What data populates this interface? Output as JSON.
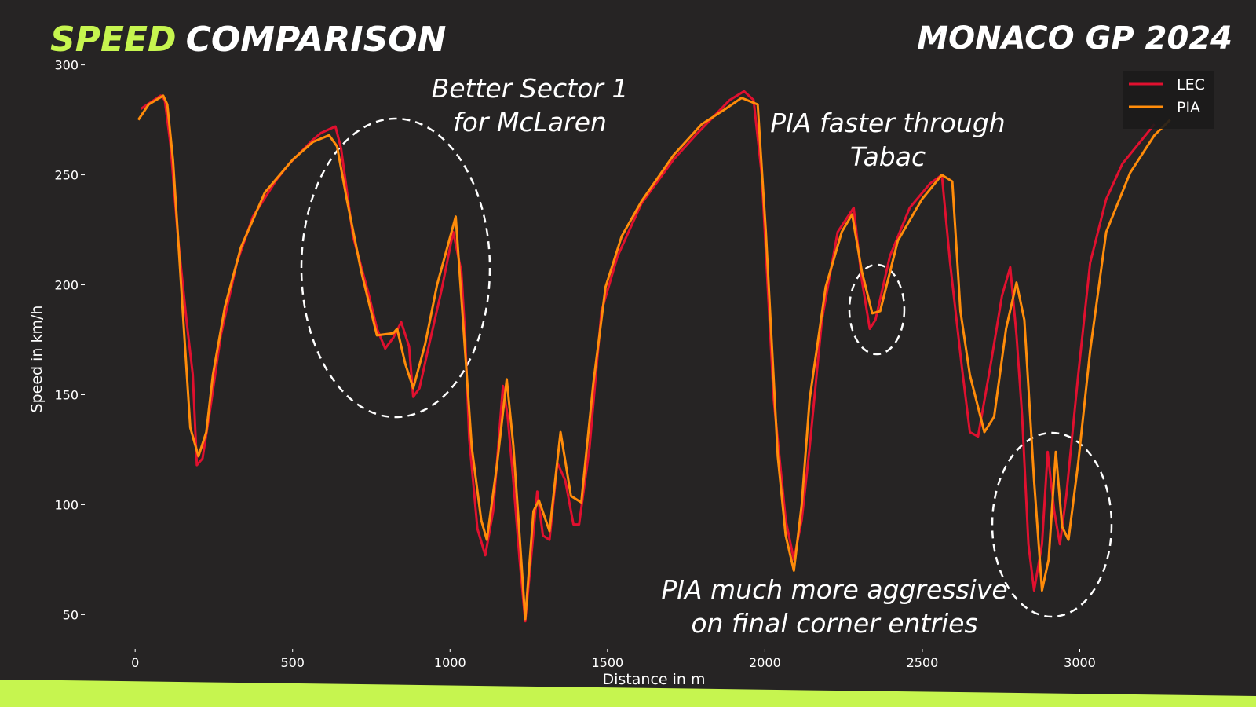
{
  "chart_data": {
    "type": "line",
    "title_accent": "SPEED",
    "title": "COMPARISON",
    "subtitle": "MONACO GP 2024",
    "x_label": "Distance in m",
    "y_label": "Speed in km/h",
    "xlim": [
      -150,
      3440
    ],
    "ylim": [
      38,
      302
    ],
    "xticks": [
      0,
      500,
      1000,
      1500,
      2000,
      2500,
      3000
    ],
    "yticks": [
      50,
      100,
      150,
      200,
      250,
      300
    ],
    "grid": false,
    "legend": "upper right",
    "series": [
      {
        "name": "LEC",
        "color": "#e0102f",
        "x": [
          18,
          81,
          94,
          112,
          137,
          163,
          183,
          196,
          214,
          239,
          272,
          323,
          374,
          450,
          489,
          565,
          590,
          636,
          654,
          692,
          743,
          768,
          794,
          820,
          845,
          870,
          883,
          903,
          934,
          972,
          1010,
          1036,
          1048,
          1061,
          1087,
          1112,
          1137,
          1168,
          1183,
          1201,
          1221,
          1239,
          1257,
          1277,
          1295,
          1316,
          1341,
          1366,
          1392,
          1410,
          1443,
          1481,
          1532,
          1608,
          1710,
          1786,
          1888,
          1934,
          1964,
          1990,
          2028,
          2066,
          2092,
          2117,
          2142,
          2181,
          2231,
          2282,
          2308,
          2333,
          2351,
          2397,
          2460,
          2524,
          2562,
          2588,
          2626,
          2651,
          2677,
          2715,
          2753,
          2779,
          2799,
          2817,
          2837,
          2855,
          2880,
          2898,
          2919,
          2937,
          2957,
          2995,
          3033,
          3084,
          3135,
          3186,
          3237
        ],
        "values": [
          280,
          286,
          284,
          264,
          220,
          184,
          159,
          118,
          121,
          144,
          177,
          210,
          231,
          248,
          255,
          266,
          269,
          272,
          262,
          222,
          195,
          180,
          171,
          176,
          183,
          172,
          149,
          153,
          173,
          197,
          224,
          206,
          177,
          130,
          89,
          77,
          97,
          154,
          140,
          111,
          75,
          47,
          75,
          106,
          86,
          84,
          119,
          111,
          91,
          91,
          126,
          188,
          213,
          237,
          257,
          269,
          284,
          288,
          284,
          250,
          148,
          93,
          75,
          93,
          126,
          184,
          224,
          235,
          202,
          180,
          184,
          213,
          235,
          246,
          250,
          210,
          162,
          133,
          131,
          162,
          195,
          208,
          177,
          140,
          82,
          61,
          82,
          124,
          97,
          82,
          104,
          159,
          210,
          239,
          255,
          264,
          273
        ]
      },
      {
        "name": "PIA",
        "color": "#ff8c0a",
        "x": [
          10,
          43,
          89,
          102,
          120,
          137,
          158,
          175,
          201,
          226,
          247,
          285,
          336,
          412,
          501,
          565,
          616,
          641,
          672,
          718,
          768,
          820,
          832,
          858,
          883,
          921,
          959,
          997,
          1018,
          1043,
          1069,
          1099,
          1117,
          1150,
          1180,
          1201,
          1219,
          1239,
          1265,
          1282,
          1316,
          1351,
          1384,
          1417,
          1455,
          1494,
          1545,
          1608,
          1710,
          1799,
          1875,
          1926,
          1977,
          2003,
          2041,
          2066,
          2092,
          2117,
          2142,
          2193,
          2244,
          2277,
          2308,
          2341,
          2366,
          2422,
          2499,
          2562,
          2595,
          2621,
          2651,
          2697,
          2728,
          2766,
          2799,
          2824,
          2855,
          2880,
          2901,
          2924,
          2944,
          2964,
          2995,
          3033,
          3084,
          3160,
          3237,
          3287
        ],
        "values": [
          275,
          282,
          286,
          282,
          257,
          220,
          173,
          135,
          122,
          133,
          159,
          190,
          217,
          242,
          257,
          265,
          268,
          263,
          239,
          206,
          177,
          178,
          180,
          164,
          153,
          173,
          200,
          220,
          231,
          180,
          126,
          93,
          84,
          119,
          157,
          127,
          90,
          48,
          97,
          102,
          88,
          133,
          104,
          101,
          155,
          199,
          222,
          238,
          259,
          273,
          280,
          285,
          282,
          224,
          122,
          86,
          70,
          100,
          148,
          199,
          224,
          232,
          206,
          187,
          188,
          220,
          239,
          250,
          247,
          188,
          159,
          133,
          140,
          180,
          201,
          184,
          111,
          61,
          75,
          124,
          90,
          84,
          119,
          170,
          224,
          251,
          268,
          275
        ]
      }
    ],
    "annotations": [
      {
        "lines": [
          "Better Sector 1",
          "for McLaren"
        ]
      },
      {
        "lines": [
          "PIA faster through",
          "Tabac"
        ]
      },
      {
        "lines": [
          "PIA much more aggressive",
          "on final corner entries"
        ]
      }
    ]
  }
}
